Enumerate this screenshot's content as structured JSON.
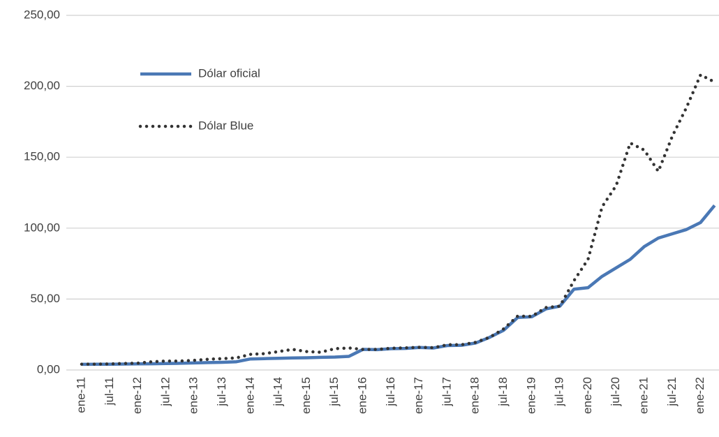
{
  "chart_data": {
    "type": "line",
    "categories": [
      "ene-11",
      null,
      "jul-11",
      null,
      "ene-12",
      null,
      "jul-12",
      null,
      "ene-13",
      null,
      "jul-13",
      null,
      "ene-14",
      null,
      "jul-14",
      null,
      "ene-15",
      null,
      "jul-15",
      null,
      "ene-16",
      null,
      "jul-16",
      null,
      "ene-17",
      null,
      "jul-17",
      null,
      "ene-18",
      null,
      "jul-18",
      null,
      "ene-19",
      null,
      "jul-19",
      null,
      "ene-20",
      null,
      "jul-20",
      null,
      "ene-21",
      null,
      "jul-21",
      null,
      "ene-22",
      null
    ],
    "series": [
      {
        "name": "Dólar oficial",
        "color": "#4a78b5",
        "style": "solid",
        "values": [
          4.0,
          4.05,
          4.1,
          4.2,
          4.35,
          4.4,
          4.55,
          4.7,
          4.95,
          5.2,
          5.4,
          5.8,
          7.8,
          8.0,
          8.2,
          8.5,
          8.6,
          8.9,
          9.1,
          9.6,
          14.5,
          14.3,
          15.0,
          15.2,
          15.9,
          15.5,
          17.2,
          17.4,
          19.0,
          23,
          28,
          37,
          37.5,
          43,
          45,
          57,
          58,
          66,
          72,
          78,
          87,
          93,
          96,
          99,
          104,
          116
        ]
      },
      {
        "name": "Dólar Blue",
        "color": "#333333",
        "style": "dotted",
        "values": [
          4.1,
          4.15,
          4.3,
          4.6,
          4.8,
          5.8,
          6.3,
          6.3,
          6.8,
          7.6,
          8.0,
          8.5,
          11,
          11.5,
          13,
          14.5,
          13,
          12.5,
          15,
          15.5,
          14.5,
          14.5,
          15.3,
          15.6,
          16,
          15.7,
          17.8,
          17.8,
          19.5,
          23,
          29,
          38,
          37.8,
          44,
          45,
          63,
          78,
          115,
          130,
          160,
          155,
          140,
          165,
          185,
          208,
          203
        ]
      }
    ],
    "ylim": [
      0,
      250
    ],
    "yticks": [
      {
        "value": 0,
        "label": "0,00"
      },
      {
        "value": 50,
        "label": "50,00"
      },
      {
        "value": 100,
        "label": "100,00"
      },
      {
        "value": 150,
        "label": "150,00"
      },
      {
        "value": 200,
        "label": "200,00"
      },
      {
        "value": 250,
        "label": "250,00"
      }
    ],
    "grid": true,
    "legend": "upper left"
  }
}
